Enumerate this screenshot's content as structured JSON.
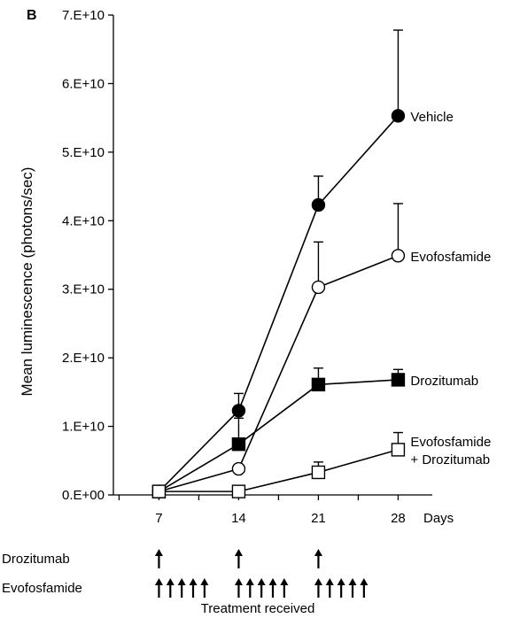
{
  "chart_data": {
    "type": "line",
    "panel_label": "B",
    "ylabel": "Mean luminescence (photons/sec)",
    "xunit": "Days",
    "ylim": [
      0,
      70000000000
    ],
    "yticks": [
      {
        "value": 0,
        "label": "0.E+00"
      },
      {
        "value": 10000000000,
        "label": "1.E+10"
      },
      {
        "value": 20000000000,
        "label": "2.E+10"
      },
      {
        "value": 30000000000,
        "label": "3.E+10"
      },
      {
        "value": 40000000000,
        "label": "4.E+10"
      },
      {
        "value": 50000000000,
        "label": "5.E+10"
      },
      {
        "value": 60000000000,
        "label": "6.E+10"
      },
      {
        "value": 70000000000,
        "label": "7.E+10"
      }
    ],
    "xlim": [
      3,
      31
    ],
    "xticks": [
      {
        "value": 7,
        "label": "7"
      },
      {
        "value": 14,
        "label": "14"
      },
      {
        "value": 21,
        "label": "21"
      },
      {
        "value": 28,
        "label": "28"
      }
    ],
    "grid": false,
    "series": [
      {
        "name": "Vehicle",
        "marker": "circle",
        "fill": "#000000",
        "x": [
          7,
          14,
          21,
          28
        ],
        "y": [
          500000000,
          12300000000,
          42300000000,
          55300000000
        ],
        "err": [
          0,
          2500000000,
          4200000000,
          12500000000
        ]
      },
      {
        "name": "Evofosfamide",
        "marker": "circle",
        "fill": "#ffffff",
        "x": [
          7,
          14,
          21,
          28
        ],
        "y": [
          500000000,
          3800000000,
          30300000000,
          34900000000
        ],
        "err": [
          0,
          0,
          6600000000,
          7600000000
        ]
      },
      {
        "name": "Drozitumab",
        "marker": "square",
        "fill": "#000000",
        "x": [
          7,
          14,
          21,
          28
        ],
        "y": [
          500000000,
          7400000000,
          16100000000,
          16800000000
        ],
        "err": [
          0,
          3800000000,
          2400000000,
          1500000000
        ]
      },
      {
        "name": "Evofosfamide\n+ Drozitumab",
        "marker": "square",
        "fill": "#ffffff",
        "x": [
          7,
          14,
          21,
          28
        ],
        "y": [
          500000000,
          500000000,
          3300000000,
          6600000000
        ],
        "err": [
          0,
          0,
          1500000000,
          2500000000
        ]
      }
    ],
    "treatments": {
      "caption": "Treatment received",
      "rows": [
        {
          "label": "Drozitumab",
          "doses": [
            7,
            14,
            21
          ]
        },
        {
          "label": "Evofosfamide",
          "doses": [
            7,
            8,
            9,
            10,
            11,
            14,
            15,
            16,
            17,
            18,
            21,
            22,
            23,
            24,
            25
          ]
        }
      ]
    }
  }
}
